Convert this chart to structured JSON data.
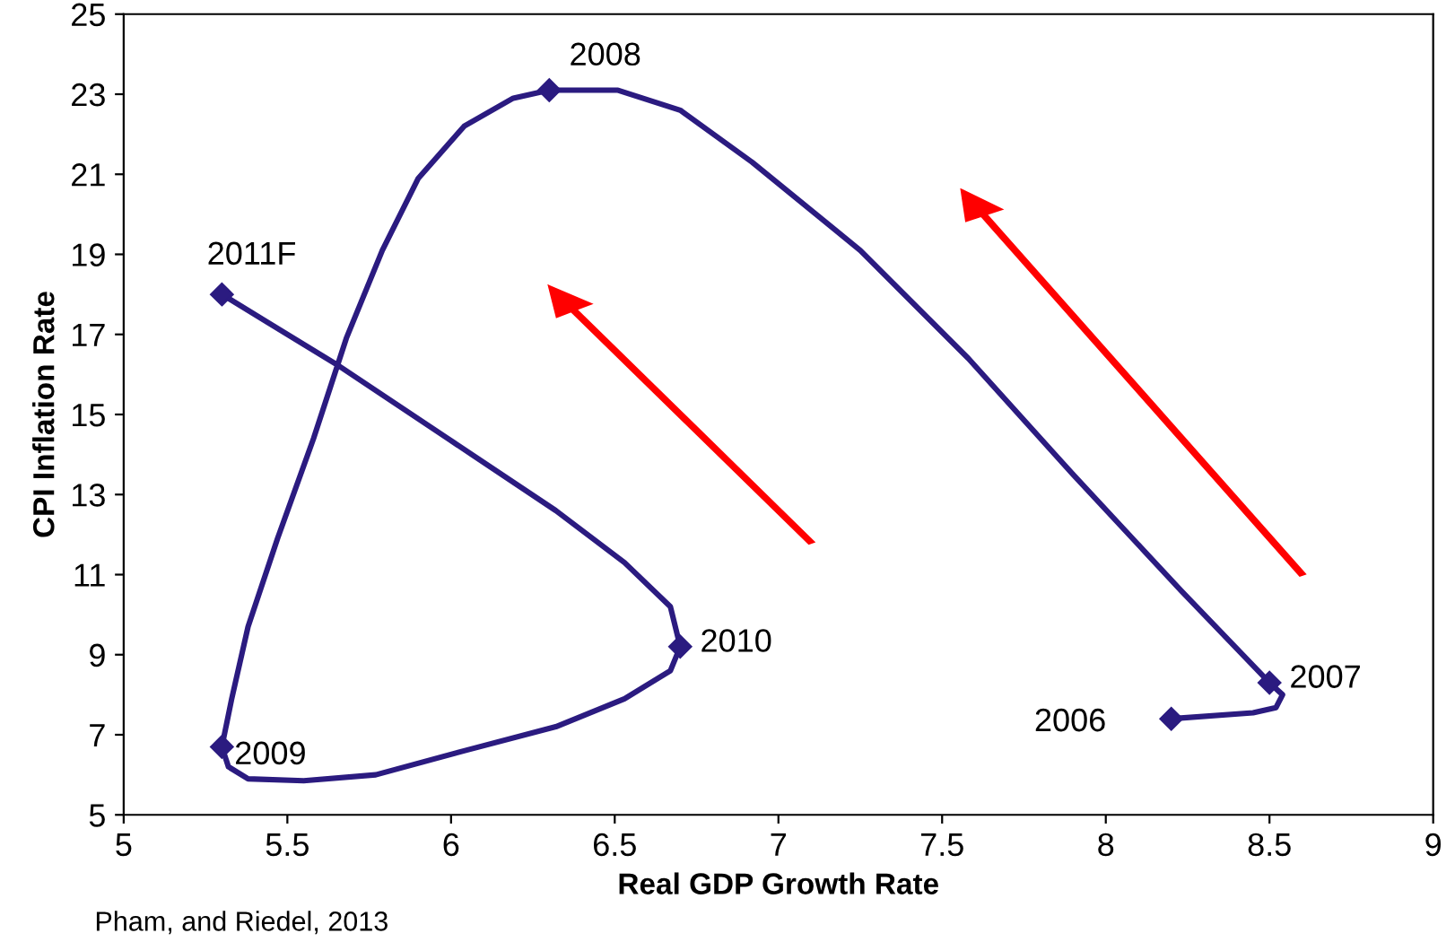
{
  "chart_data": {
    "type": "line",
    "xlabel": "Real GDP Growth Rate",
    "ylabel": "CPI Inflation Rate",
    "series": [
      {
        "color": "#2b1b80",
        "marker": "none",
        "x": [
          8.2,
          8.45,
          8.52,
          8.54,
          8.5,
          8.23,
          7.9,
          7.58,
          7.25,
          6.92,
          6.7,
          6.51,
          6.3,
          6.19,
          6.04,
          5.9,
          5.79,
          5.68,
          5.58,
          5.47,
          5.38,
          5.33,
          5.3,
          5.32,
          5.38,
          5.55,
          5.77,
          6.04,
          6.32,
          6.53,
          6.67,
          6.7,
          6.67,
          6.53,
          6.32,
          5.99,
          5.66,
          5.44,
          5.3
        ],
        "values": [
          7.4,
          7.55,
          7.68,
          8.0,
          8.3,
          10.6,
          13.5,
          16.4,
          19.1,
          21.3,
          22.6,
          23.1,
          23.1,
          22.9,
          22.2,
          20.9,
          19.1,
          16.9,
          14.4,
          11.9,
          9.7,
          7.9,
          6.7,
          6.2,
          5.9,
          5.85,
          6.0,
          6.6,
          7.2,
          7.9,
          8.6,
          9.2,
          10.2,
          11.3,
          12.6,
          14.4,
          16.2,
          17.3,
          18.0
        ]
      },
      {
        "type": "scatter",
        "color": "#2b1b80",
        "marker": "diamond",
        "x": [
          8.2,
          8.5,
          6.3,
          5.3,
          6.7,
          5.3
        ],
        "values": [
          7.4,
          8.3,
          23.1,
          6.7,
          9.2,
          18.0
        ]
      }
    ],
    "line_style": "solid",
    "grid": false,
    "xlim": [
      5,
      9
    ],
    "xticks": [
      5,
      5.5,
      6,
      6.5,
      7,
      7.5,
      8,
      8.5,
      9
    ],
    "ylim": [
      5,
      25
    ],
    "yticks": [
      5,
      7,
      9,
      11,
      13,
      15,
      17,
      19,
      21,
      23,
      25
    ],
    "annotations": [
      {
        "text": "2006",
        "x": 8.2,
        "y": 7.4
      },
      {
        "text": "2007",
        "x": 8.5,
        "y": 8.3
      },
      {
        "text": "2008",
        "x": 6.3,
        "y": 23.1
      },
      {
        "text": "2009",
        "x": 5.3,
        "y": 6.7
      },
      {
        "text": "2010",
        "x": 6.7,
        "y": 9.2
      },
      {
        "text": "2011F",
        "x": 5.3,
        "y": 18.0
      },
      "Pham, and Riedel, 2013"
    ]
  }
}
